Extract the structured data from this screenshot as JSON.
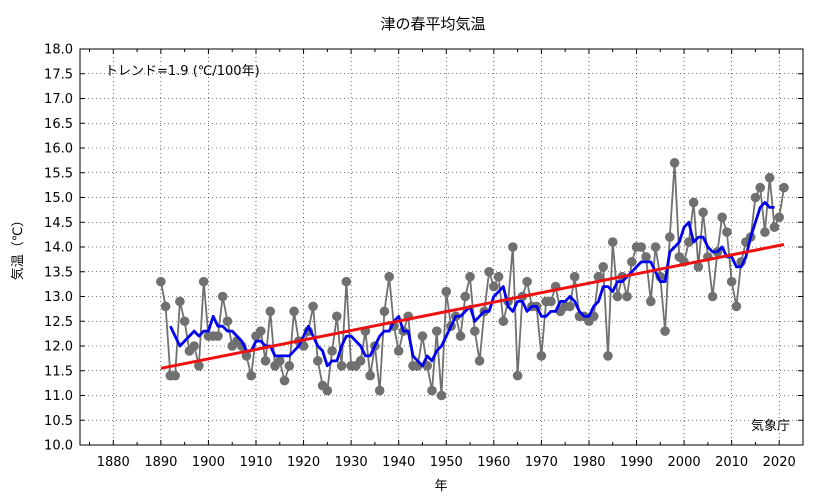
{
  "chart_data": {
    "type": "line",
    "title": "津の春平均気温",
    "xlabel": "年",
    "ylabel": "気温（℃）",
    "xlim": [
      1873,
      2025
    ],
    "ylim": [
      10.0,
      18.0
    ],
    "x_ticks": [
      1880,
      1890,
      1900,
      1910,
      1920,
      1930,
      1940,
      1950,
      1960,
      1970,
      1980,
      1990,
      2000,
      2010,
      2020
    ],
    "y_ticks": [
      "10.0",
      "10.5",
      "11.0",
      "11.5",
      "12.0",
      "12.5",
      "13.0",
      "13.5",
      "14.0",
      "14.5",
      "15.0",
      "15.5",
      "16.0",
      "16.5",
      "17.0",
      "17.5",
      "18.0"
    ],
    "grid": true,
    "trend_label": "トレンド=1.9 (℃/100年)",
    "source_label": "気象庁",
    "colors": {
      "annual": "#707070",
      "moving_average": "#0000ee",
      "trend": "#ee1111",
      "grid": "#000000"
    },
    "series": [
      {
        "kind": "annual",
        "x": [
          1890,
          1891,
          1892,
          1893,
          1894,
          1895,
          1896,
          1897,
          1898,
          1899,
          1900,
          1901,
          1902,
          1903,
          1904,
          1905,
          1906,
          1907,
          1908,
          1909,
          1910,
          1911,
          1912,
          1913,
          1914,
          1915,
          1916,
          1917,
          1918,
          1919,
          1920,
          1921,
          1922,
          1923,
          1924,
          1925,
          1926,
          1927,
          1928,
          1929,
          1930,
          1931,
          1932,
          1933,
          1934,
          1935,
          1936,
          1937,
          1938,
          1939,
          1940,
          1941,
          1942,
          1943,
          1944,
          1945,
          1946,
          1947,
          1948,
          1949,
          1950,
          1951,
          1952,
          1953,
          1954,
          1955,
          1956,
          1957,
          1958,
          1959,
          1960,
          1961,
          1962,
          1963,
          1964,
          1965,
          1966,
          1967,
          1968,
          1969,
          1970,
          1971,
          1972,
          1973,
          1974,
          1975,
          1976,
          1977,
          1978,
          1979,
          1980,
          1981,
          1982,
          1983,
          1984,
          1985,
          1986,
          1987,
          1988,
          1989,
          1990,
          1991,
          1992,
          1993,
          1994,
          1995,
          1996,
          1997,
          1998,
          1999,
          2000,
          2001,
          2002,
          2003,
          2004,
          2005,
          2006,
          2007,
          2008,
          2009,
          2010,
          2011,
          2012,
          2013,
          2014,
          2015,
          2016,
          2017,
          2018,
          2019,
          2020,
          2021
        ],
        "y": [
          13.3,
          12.8,
          11.4,
          11.4,
          12.9,
          12.5,
          11.9,
          12.0,
          11.6,
          13.3,
          12.2,
          12.2,
          12.2,
          13.0,
          12.5,
          12.0,
          12.1,
          12.0,
          11.8,
          11.4,
          12.2,
          12.3,
          11.7,
          12.7,
          11.6,
          11.7,
          11.3,
          11.6,
          12.7,
          12.1,
          12.0,
          12.3,
          12.8,
          11.7,
          11.2,
          11.1,
          11.9,
          12.6,
          11.6,
          13.3,
          11.6,
          11.6,
          11.7,
          12.3,
          11.4,
          12.0,
          11.1,
          12.7,
          13.4,
          12.4,
          11.9,
          12.3,
          12.6,
          11.6,
          11.6,
          12.2,
          11.6,
          11.1,
          12.3,
          11.0,
          13.1,
          12.4,
          12.6,
          12.2,
          13.0,
          13.4,
          12.3,
          11.7,
          12.7,
          13.5,
          13.2,
          13.4,
          12.5,
          12.9,
          14.0,
          11.4,
          13.0,
          13.3,
          12.8,
          12.8,
          11.8,
          12.9,
          12.9,
          13.2,
          12.7,
          12.8,
          12.8,
          13.4,
          12.6,
          12.6,
          12.5,
          12.6,
          13.4,
          13.6,
          11.8,
          14.1,
          13.0,
          13.4,
          13.0,
          13.7,
          14.0,
          14.0,
          13.8,
          12.9,
          14.0,
          13.4,
          12.3,
          14.2,
          15.7,
          13.8,
          13.7,
          14.1,
          14.9,
          13.6,
          14.7,
          13.8,
          13.0,
          13.9,
          14.6,
          14.3,
          13.3,
          12.8,
          13.7,
          14.1,
          14.2,
          15.0,
          15.2,
          14.3,
          15.4,
          14.4,
          14.6,
          15.2
        ]
      },
      {
        "kind": "moving_average",
        "x": [
          1892,
          1893,
          1894,
          1895,
          1896,
          1897,
          1898,
          1899,
          1900,
          1901,
          1902,
          1903,
          1904,
          1905,
          1906,
          1907,
          1908,
          1909,
          1910,
          1911,
          1912,
          1913,
          1914,
          1915,
          1916,
          1917,
          1918,
          1919,
          1920,
          1921,
          1922,
          1923,
          1924,
          1925,
          1926,
          1927,
          1928,
          1929,
          1930,
          1931,
          1932,
          1933,
          1934,
          1935,
          1936,
          1937,
          1938,
          1939,
          1940,
          1941,
          1942,
          1943,
          1944,
          1945,
          1946,
          1947,
          1948,
          1949,
          1950,
          1951,
          1952,
          1953,
          1954,
          1955,
          1956,
          1957,
          1958,
          1959,
          1960,
          1961,
          1962,
          1963,
          1964,
          1965,
          1966,
          1967,
          1968,
          1969,
          1970,
          1971,
          1972,
          1973,
          1974,
          1975,
          1976,
          1977,
          1978,
          1979,
          1980,
          1981,
          1982,
          1983,
          1984,
          1985,
          1986,
          1987,
          1988,
          1989,
          1990,
          1991,
          1992,
          1993,
          1994,
          1995,
          1996,
          1997,
          1998,
          1999,
          2000,
          2001,
          2002,
          2003,
          2004,
          2005,
          2006,
          2007,
          2008,
          2009,
          2010,
          2011,
          2012,
          2013,
          2014,
          2015,
          2016,
          2017,
          2018,
          2019
        ],
        "y": [
          12.4,
          12.2,
          12.0,
          12.1,
          12.2,
          12.3,
          12.2,
          12.3,
          12.3,
          12.6,
          12.4,
          12.4,
          12.3,
          12.3,
          12.2,
          12.1,
          11.9,
          11.9,
          12.1,
          12.1,
          12.0,
          12.0,
          11.8,
          11.8,
          11.8,
          11.8,
          11.9,
          12.0,
          12.2,
          12.4,
          12.2,
          12.0,
          11.9,
          11.6,
          11.7,
          11.7,
          12.0,
          12.2,
          12.2,
          12.1,
          12.0,
          11.8,
          11.8,
          12.0,
          12.2,
          12.3,
          12.3,
          12.5,
          12.6,
          12.3,
          12.3,
          11.8,
          11.7,
          11.6,
          11.8,
          11.7,
          11.9,
          12.0,
          12.2,
          12.4,
          12.6,
          12.6,
          12.7,
          12.8,
          12.5,
          12.6,
          12.7,
          12.7,
          13.0,
          13.1,
          13.2,
          12.8,
          12.7,
          12.9,
          12.9,
          12.7,
          12.8,
          12.8,
          12.6,
          12.6,
          12.7,
          12.7,
          12.9,
          12.9,
          13.0,
          12.9,
          12.7,
          12.6,
          12.6,
          12.8,
          12.9,
          13.2,
          13.2,
          13.1,
          13.3,
          13.3,
          13.4,
          13.5,
          13.6,
          13.7,
          13.7,
          13.7,
          13.5,
          13.3,
          13.3,
          13.9,
          14.0,
          14.1,
          14.4,
          14.5,
          14.1,
          14.2,
          14.2,
          14.0,
          13.9,
          13.9,
          14.0,
          13.8,
          13.8,
          13.6,
          13.6,
          13.8,
          14.2,
          14.5,
          14.8,
          14.9,
          14.8,
          14.8
        ]
      },
      {
        "kind": "trend",
        "x": [
          1890,
          2021
        ],
        "y": [
          11.55,
          14.05
        ]
      }
    ]
  }
}
